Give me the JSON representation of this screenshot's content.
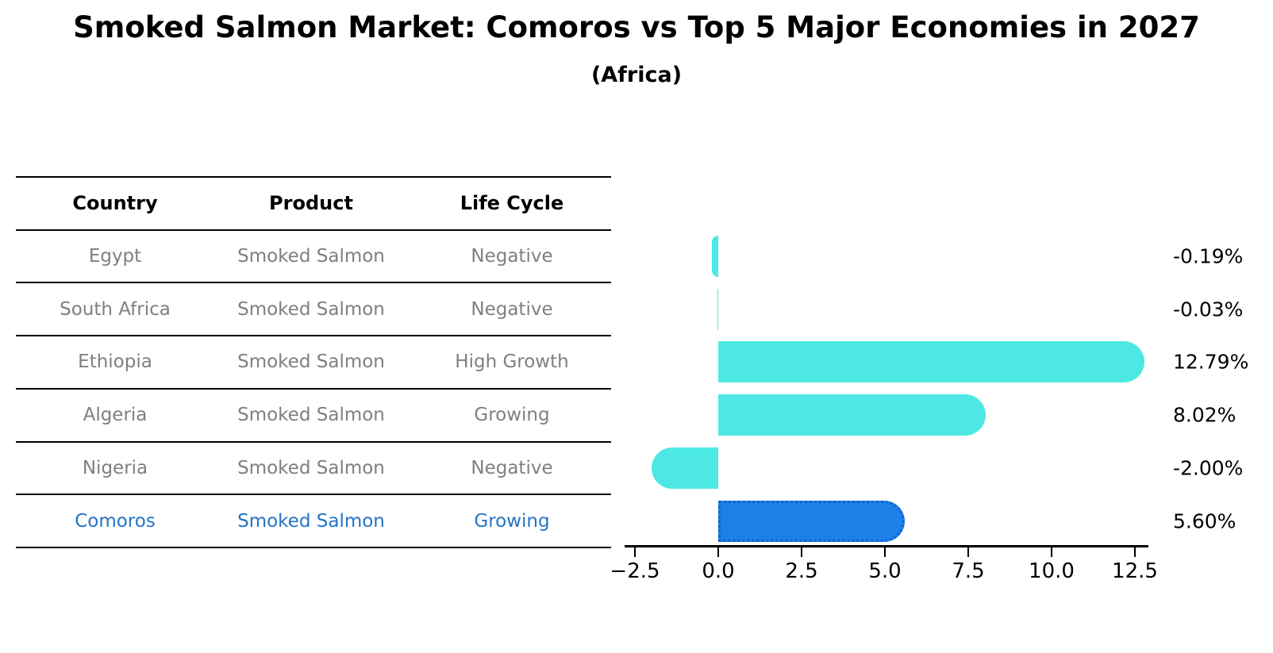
{
  "header": {
    "title": "Smoked Salmon Market: Comoros vs Top 5 Major Economies in 2027",
    "subtitle": "(Africa)"
  },
  "table": {
    "headers": [
      "Country",
      "Product",
      "Life Cycle"
    ],
    "rows": [
      {
        "country": "Egypt",
        "product": "Smoked Salmon",
        "life_cycle": "Negative",
        "highlight": false
      },
      {
        "country": "South Africa",
        "product": "Smoked Salmon",
        "life_cycle": "Negative",
        "highlight": false
      },
      {
        "country": "Ethiopia",
        "product": "Smoked Salmon",
        "life_cycle": "High Growth",
        "highlight": false
      },
      {
        "country": "Algeria",
        "product": "Smoked Salmon",
        "life_cycle": "Growing",
        "highlight": false
      },
      {
        "country": "Nigeria",
        "product": "Smoked Salmon",
        "life_cycle": "Negative",
        "highlight": false
      },
      {
        "country": "Comoros",
        "product": "Smoked Salmon",
        "life_cycle": "Growing",
        "highlight": true
      }
    ],
    "text_color": "#7f7f7f",
    "highlight_text_color": "#2474C7",
    "rule_color": "#000000"
  },
  "chart_data": {
    "type": "bar",
    "orientation": "horizontal",
    "title": "Smoked Salmon Market: Comoros vs Top 5 Major Economies in 2027",
    "subtitle": "(Africa)",
    "categories": [
      "Egypt",
      "South Africa",
      "Ethiopia",
      "Algeria",
      "Nigeria",
      "Comoros"
    ],
    "values": [
      -0.19,
      -0.03,
      12.79,
      8.02,
      -2.0,
      5.6
    ],
    "value_labels": [
      "-0.19%",
      "-0.03%",
      "12.79%",
      "8.02%",
      "-2.00%",
      "5.60%"
    ],
    "value_suffix": "%",
    "highlight_index": 5,
    "bar_color": "#4DE8E3",
    "highlight_bar_color": "#1E80E6",
    "highlight_border_color": "#0C63D0",
    "x_tick_values": [
      -2.5,
      0.0,
      2.5,
      5.0,
      7.5,
      10.0,
      12.5
    ],
    "x_tick_labels": [
      "−2.5",
      "0.0",
      "2.5",
      "5.0",
      "7.5",
      "10.0",
      "12.5"
    ],
    "xlim": [
      -2.81,
      12.9
    ],
    "grid": false,
    "legend": false,
    "axis_color": "#000000"
  }
}
